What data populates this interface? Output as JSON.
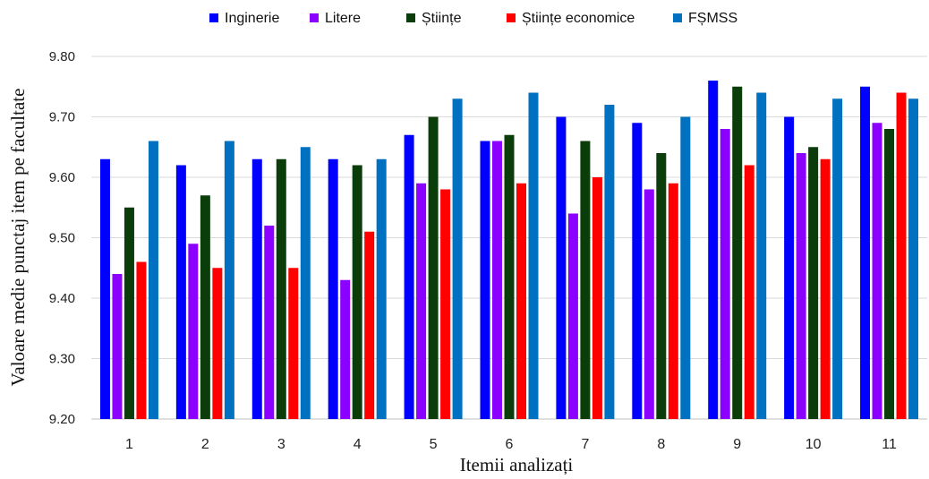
{
  "chart_data": {
    "type": "bar",
    "title": "",
    "xlabel": "Itemii analizați",
    "ylabel": "Valoare medie punctaj item pe facultate",
    "ylim": [
      9.2,
      9.8
    ],
    "yticks": [
      "9.20",
      "9.30",
      "9.40",
      "9.50",
      "9.60",
      "9.70",
      "9.80"
    ],
    "grid": true,
    "legend_position": "top",
    "categories": [
      "1",
      "2",
      "3",
      "4",
      "5",
      "6",
      "7",
      "8",
      "9",
      "10",
      "11"
    ],
    "series": [
      {
        "name": "Inginerie",
        "color": "#0000ff",
        "values": [
          9.63,
          9.62,
          9.63,
          9.63,
          9.67,
          9.66,
          9.7,
          9.69,
          9.76,
          9.7,
          9.75
        ]
      },
      {
        "name": "Litere",
        "color": "#8b00ff",
        "values": [
          9.44,
          9.49,
          9.52,
          9.43,
          9.59,
          9.66,
          9.54,
          9.58,
          9.68,
          9.64,
          9.69
        ]
      },
      {
        "name": "Științe",
        "color": "#0b3d0b",
        "values": [
          9.55,
          9.57,
          9.63,
          9.62,
          9.7,
          9.67,
          9.66,
          9.64,
          9.75,
          9.65,
          9.68
        ]
      },
      {
        "name": "Științe economice",
        "color": "#ff0000",
        "values": [
          9.46,
          9.45,
          9.45,
          9.51,
          9.58,
          9.59,
          9.6,
          9.59,
          9.62,
          9.63,
          9.74
        ]
      },
      {
        "name": "FȘMSS",
        "color": "#0070c0",
        "values": [
          9.66,
          9.66,
          9.65,
          9.63,
          9.73,
          9.74,
          9.72,
          9.7,
          9.74,
          9.73,
          9.73
        ]
      }
    ]
  }
}
